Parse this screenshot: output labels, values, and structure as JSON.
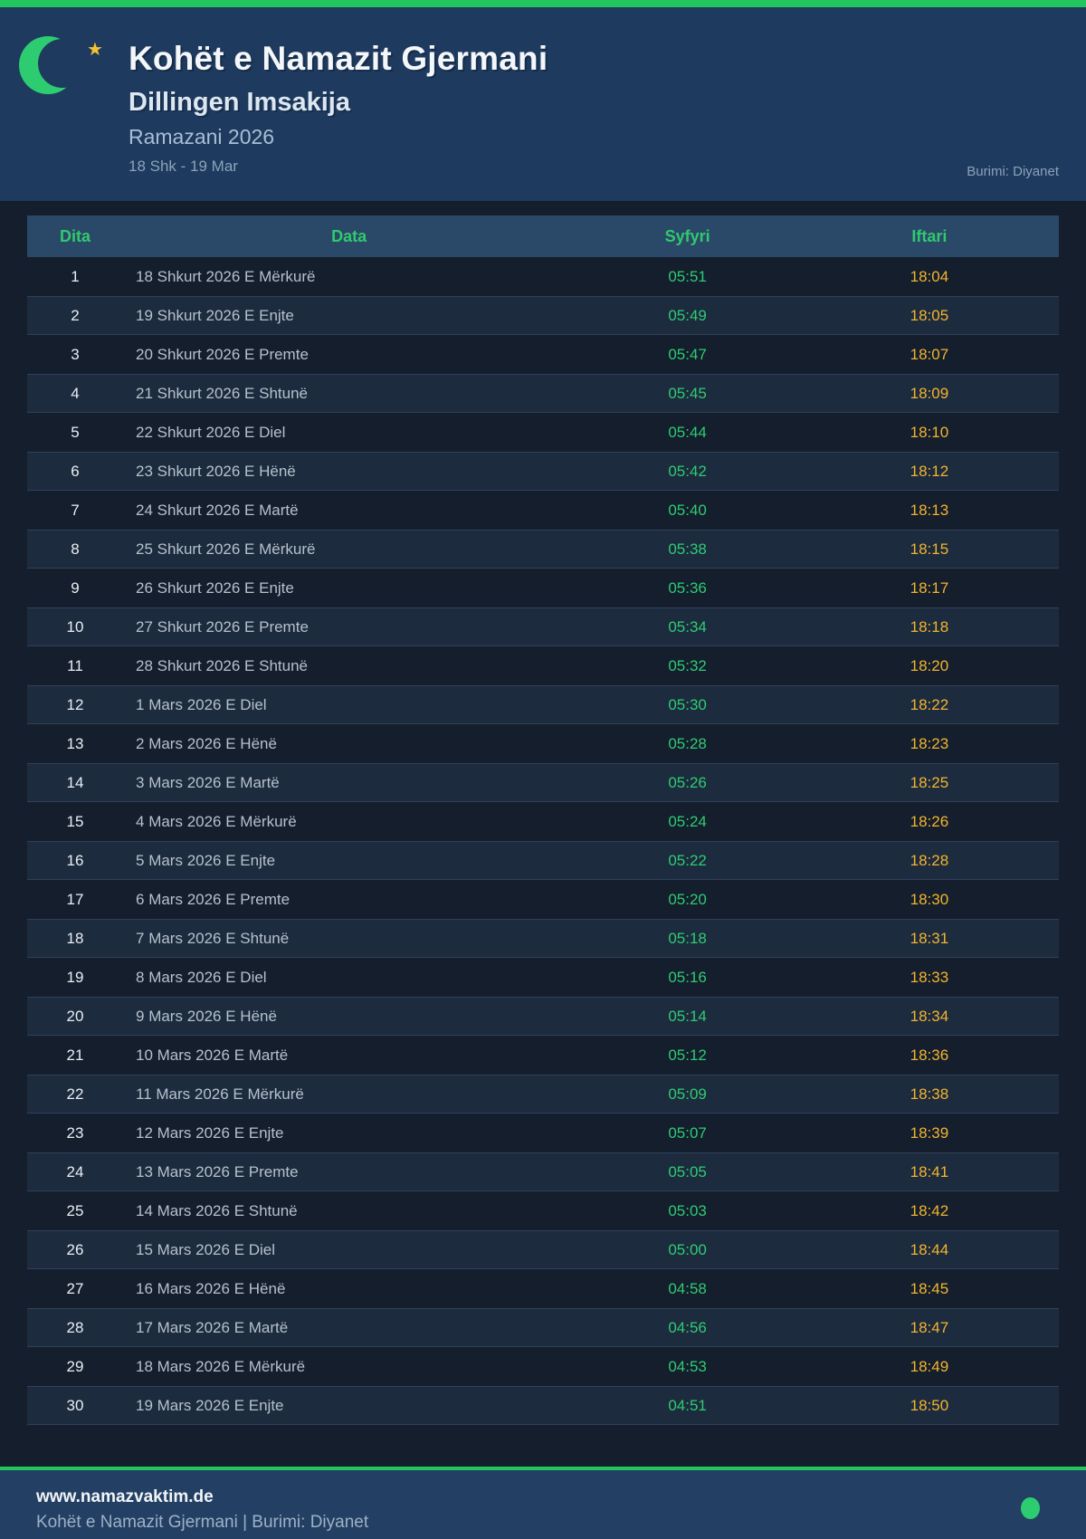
{
  "header": {
    "title": "Kohët e Namazit Gjermani",
    "subtitle": "Dillingen Imsakija",
    "season": "Ramazani 2026",
    "date_range": "18 Shk - 19 Mar",
    "source": "Burimi: Diyanet",
    "star_glyph": "★"
  },
  "table": {
    "columns": {
      "day": "Dita",
      "date": "Data",
      "suhoor": "Syfyri",
      "iftar": "Iftari"
    },
    "rows": [
      [
        "1",
        "18 Shkurt 2026 E Mërkurë",
        "05:51",
        "18:04"
      ],
      [
        "2",
        "19 Shkurt 2026 E Enjte",
        "05:49",
        "18:05"
      ],
      [
        "3",
        "20 Shkurt 2026 E Premte",
        "05:47",
        "18:07"
      ],
      [
        "4",
        "21 Shkurt 2026 E Shtunë",
        "05:45",
        "18:09"
      ],
      [
        "5",
        "22 Shkurt 2026 E Diel",
        "05:44",
        "18:10"
      ],
      [
        "6",
        "23 Shkurt 2026 E Hënë",
        "05:42",
        "18:12"
      ],
      [
        "7",
        "24 Shkurt 2026 E Martë",
        "05:40",
        "18:13"
      ],
      [
        "8",
        "25 Shkurt 2026 E Mërkurë",
        "05:38",
        "18:15"
      ],
      [
        "9",
        "26 Shkurt 2026 E Enjte",
        "05:36",
        "18:17"
      ],
      [
        "10",
        "27 Shkurt 2026 E Premte",
        "05:34",
        "18:18"
      ],
      [
        "11",
        "28 Shkurt 2026 E Shtunë",
        "05:32",
        "18:20"
      ],
      [
        "12",
        "1 Mars 2026 E Diel",
        "05:30",
        "18:22"
      ],
      [
        "13",
        "2 Mars 2026 E Hënë",
        "05:28",
        "18:23"
      ],
      [
        "14",
        "3 Mars 2026 E Martë",
        "05:26",
        "18:25"
      ],
      [
        "15",
        "4 Mars 2026 E Mërkurë",
        "05:24",
        "18:26"
      ],
      [
        "16",
        "5 Mars 2026 E Enjte",
        "05:22",
        "18:28"
      ],
      [
        "17",
        "6 Mars 2026 E Premte",
        "05:20",
        "18:30"
      ],
      [
        "18",
        "7 Mars 2026 E Shtunë",
        "05:18",
        "18:31"
      ],
      [
        "19",
        "8 Mars 2026 E Diel",
        "05:16",
        "18:33"
      ],
      [
        "20",
        "9 Mars 2026 E Hënë",
        "05:14",
        "18:34"
      ],
      [
        "21",
        "10 Mars 2026 E Martë",
        "05:12",
        "18:36"
      ],
      [
        "22",
        "11 Mars 2026 E Mërkurë",
        "05:09",
        "18:38"
      ],
      [
        "23",
        "12 Mars 2026 E Enjte",
        "05:07",
        "18:39"
      ],
      [
        "24",
        "13 Mars 2026 E Premte",
        "05:05",
        "18:41"
      ],
      [
        "25",
        "14 Mars 2026 E Shtunë",
        "05:03",
        "18:42"
      ],
      [
        "26",
        "15 Mars 2026 E Diel",
        "05:00",
        "18:44"
      ],
      [
        "27",
        "16 Mars 2026 E Hënë",
        "04:58",
        "18:45"
      ],
      [
        "28",
        "17 Mars 2026 E Martë",
        "04:56",
        "18:47"
      ],
      [
        "29",
        "18 Mars 2026 E Mërkurë",
        "04:53",
        "18:49"
      ],
      [
        "30",
        "19 Mars 2026 E Enjte",
        "04:51",
        "18:50"
      ]
    ]
  },
  "footer": {
    "website": "www.namazvaktim.de",
    "credit": "Kohët e Namazit Gjermani | Burimi: Diyanet"
  },
  "colors": {
    "accent_green": "#22c55e",
    "moon_green": "#2ecc71",
    "star_gold": "#f5c231",
    "suhoor_green": "#2ecc71",
    "iftar_amber": "#f3b42d",
    "header_navy": "#1e3a5e",
    "footer_navy": "#234064",
    "page_bg": "#141e2d",
    "table_header_bg": "#2a4868",
    "table_header_text": "#30c96e"
  }
}
